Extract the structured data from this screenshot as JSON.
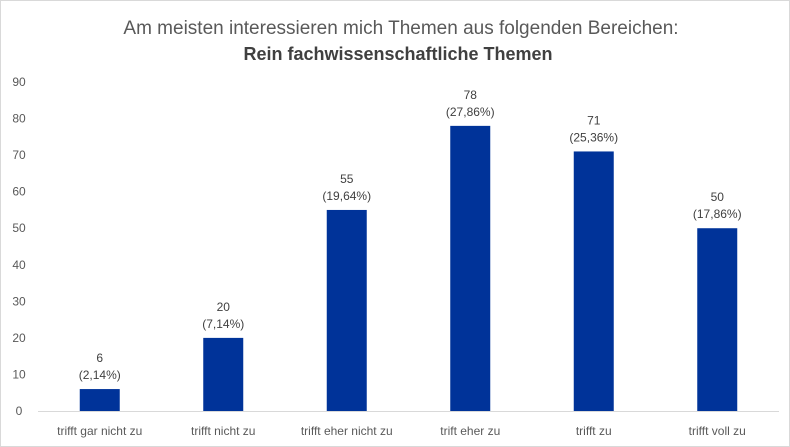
{
  "chart_data": {
    "type": "bar",
    "title": "Am meisten interessieren mich Themen aus folgenden Bereichen:",
    "subtitle": "Rein fachwissenschaftliche Themen",
    "categories": [
      "trifft gar nicht zu",
      "trifft nicht zu",
      "trifft eher nicht zu",
      "trift eher zu",
      "trifft zu",
      "trifft voll zu"
    ],
    "values": [
      6,
      20,
      55,
      78,
      71,
      50
    ],
    "percent_labels": [
      "(2,14%)",
      "(7,14%)",
      "(19,64%)",
      "(27,86%)",
      "(25,36%)",
      "(17,86%)"
    ],
    "yticks": [
      0,
      10,
      20,
      30,
      40,
      50,
      60,
      70,
      80,
      90
    ],
    "ylim": [
      0,
      90
    ],
    "xlabel": "",
    "ylabel": "",
    "grid": false,
    "legend": "none",
    "bar_color": "#003399"
  }
}
